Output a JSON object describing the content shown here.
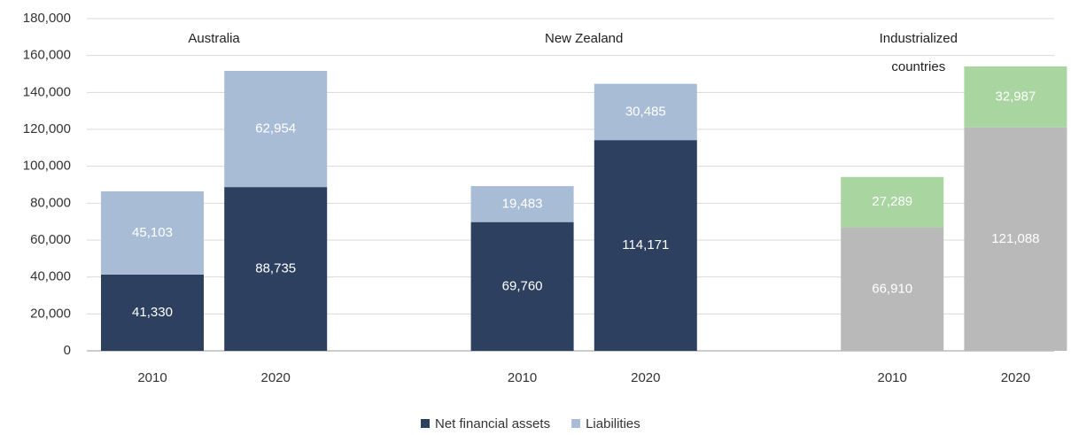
{
  "chart_data": {
    "type": "stacked_bar",
    "groups": [
      {
        "name": "Australia",
        "categories": [
          "2010",
          "2020"
        ]
      },
      {
        "name": "New Zealand",
        "categories": [
          "2010",
          "2020"
        ]
      },
      {
        "name": "Industrialized countries",
        "categories": [
          "2010",
          "2020"
        ]
      }
    ],
    "series": [
      {
        "name": "Net financial assets",
        "color": "#2e4060",
        "colors": [
          "#2e4060",
          "#2e4060",
          "#2e4060",
          "#2e4060",
          "#b9b9b9",
          "#b9b9b9"
        ],
        "values": [
          41330,
          88735,
          69760,
          114171,
          66910,
          121088
        ],
        "value_labels": [
          "41,330",
          "88,735",
          "69,760",
          "114,171",
          "66,910",
          "121,088"
        ]
      },
      {
        "name": "Liabilities",
        "color": "#a9bcd6",
        "colors": [
          "#a9bcd6",
          "#a9bcd6",
          "#a9bcd6",
          "#a9bcd6",
          "#a8d5a0",
          "#a8d5a0"
        ],
        "values": [
          45103,
          62954,
          19483,
          30485,
          27289,
          32987
        ],
        "value_labels": [
          "45,103",
          "62,954",
          "19,483",
          "30,485",
          "27,289",
          "32,987"
        ]
      }
    ],
    "ylim": [
      0,
      180000
    ],
    "yticks": [
      0,
      {
        "value": 20000,
        "label": "20,000"
      },
      {
        "value": 40000,
        "label": "40,000"
      },
      {
        "value": 60000,
        "label": "60,000"
      },
      {
        "value": 80000,
        "label": "80,000"
      },
      {
        "value": 100000,
        "label": "100,000"
      },
      {
        "value": 120000,
        "label": "120,000"
      },
      {
        "value": 140000,
        "label": "140,000"
      },
      {
        "value": 160000,
        "label": "160,000"
      },
      {
        "value": 180000,
        "label": "180,000"
      }
    ],
    "grid": true,
    "legend": "bottom"
  }
}
